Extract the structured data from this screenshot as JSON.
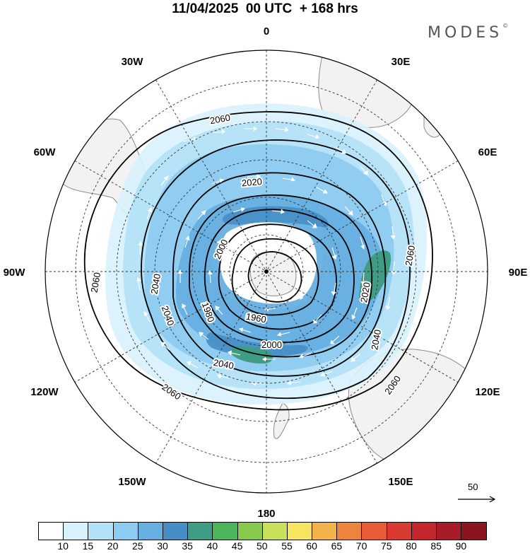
{
  "title": "11/04/2025  00 UTC  + 168 hrs",
  "brand": {
    "name": "MODES",
    "mark": "©"
  },
  "map": {
    "projection": "south-polar-stereographic",
    "longitude_labels": {
      "top": "0",
      "top_right": "30E",
      "upper_right": "60E",
      "right": "90E",
      "lower_right": "120E",
      "bottom_right": "150E",
      "bottom": "180",
      "bottom_left": "150W",
      "lower_left": "120W",
      "left": "90W",
      "upper_left": "60W",
      "top_left": "30W"
    },
    "contour_labels": [
      "2060",
      "2020",
      "2000",
      "2060",
      "2040",
      "2060",
      "1980",
      "1960",
      "2020",
      "2040",
      "2000",
      "2040",
      "2060",
      "2040",
      "2060",
      "2060"
    ],
    "reference_vector": "50",
    "colors": {
      "land": "#f2f2f2",
      "coast": "#8a8a8a",
      "graticule": "#333333",
      "contour": "#000000",
      "vector": "#ffffff"
    }
  },
  "colorbar": {
    "ticks": [
      "10",
      "15",
      "20",
      "25",
      "30",
      "35",
      "40",
      "45",
      "50",
      "55",
      "60",
      "65",
      "70",
      "75",
      "80",
      "85",
      "90"
    ],
    "colors": [
      "#ffffff",
      "#d8f1fd",
      "#b3e1f8",
      "#8ecbf0",
      "#67afe0",
      "#468ec4",
      "#3e9d84",
      "#4cb45a",
      "#86c94d",
      "#c8e05b",
      "#f7e561",
      "#f3b24a",
      "#ee843c",
      "#e85b35",
      "#d93a31",
      "#c3262f",
      "#a71c26",
      "#8a1422"
    ]
  }
}
